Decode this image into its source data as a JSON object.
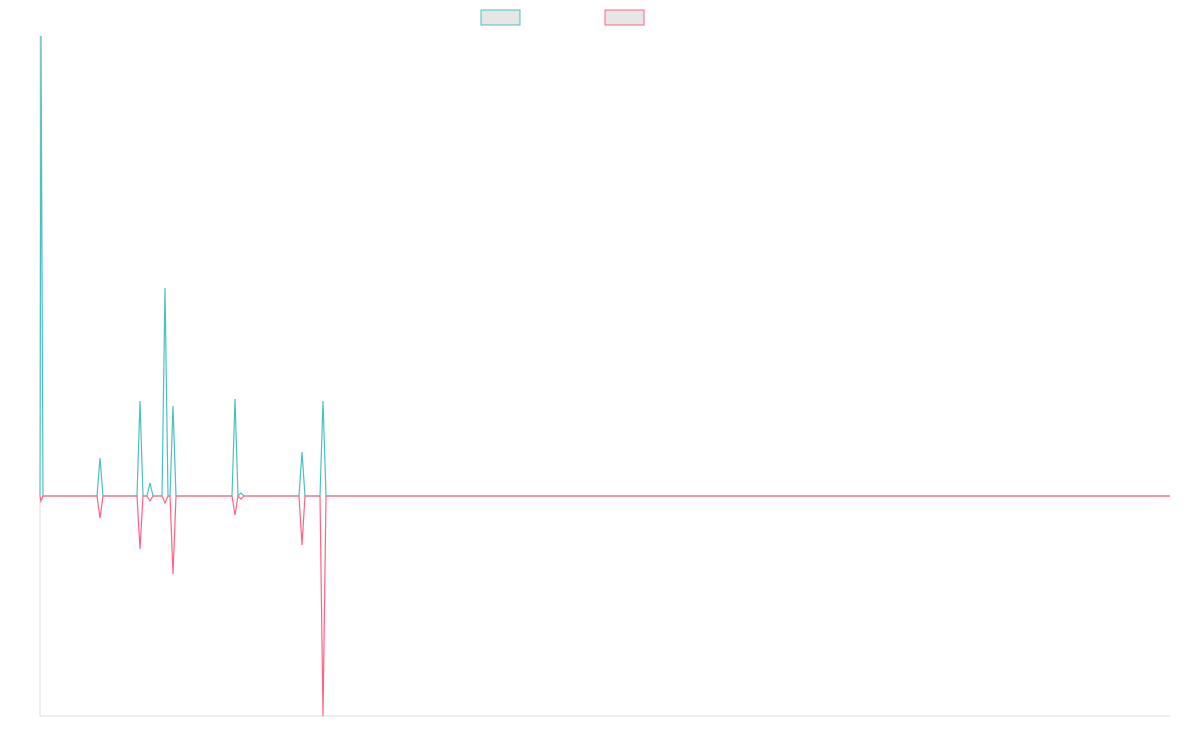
{
  "chart_data": {
    "type": "line",
    "x": [
      0,
      1,
      3,
      8,
      57,
      60,
      63,
      97,
      100,
      103,
      107,
      110,
      113,
      122,
      125,
      128,
      130,
      133,
      136,
      192,
      195,
      198,
      201,
      204,
      249,
      259,
      262,
      265,
      266,
      280,
      283,
      286,
      1130
    ],
    "series": [
      {
        "color": "#4bc0c0",
        "values": [
          0,
          460,
          0,
          0,
          0,
          38,
          0,
          0,
          95,
          0,
          0,
          13,
          0,
          0,
          208,
          0,
          0,
          90,
          0,
          0,
          97,
          0,
          3,
          0,
          0,
          0,
          44,
          0,
          0,
          0,
          95,
          0,
          0
        ]
      },
      {
        "color": "#ff6384",
        "values": [
          0,
          -5,
          0,
          0,
          0,
          -22,
          0,
          0,
          -53,
          0,
          0,
          -5,
          0,
          0,
          -7,
          0,
          0,
          -78,
          0,
          0,
          -19,
          0,
          -3,
          0,
          0,
          0,
          -49,
          0,
          0,
          0,
          -220,
          0,
          0
        ]
      }
    ],
    "xlim": [
      0,
      1130
    ],
    "ylim": [
      -220,
      461
    ]
  }
}
